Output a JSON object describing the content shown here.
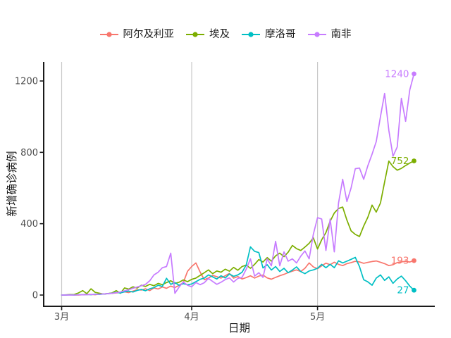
{
  "chart_data": {
    "type": "line",
    "title": "",
    "xlabel": "日期",
    "ylabel": "新增确诊病例",
    "grid": "vertical-major-only",
    "legend_position": "top-center",
    "background": "#ffffff",
    "gridline_color": "#c8c8c8",
    "axis_line_color": "#1a1a1a",
    "axis_text_color": "#4d4d4d",
    "ylim": [
      0,
      1300
    ],
    "y_ticks": [
      0,
      400,
      800,
      1200
    ],
    "x_ticks": [
      {
        "index": 0,
        "label": "3月"
      },
      {
        "index": 31,
        "label": "4月"
      },
      {
        "index": 61,
        "label": "5月"
      }
    ],
    "dates": [
      "03-01",
      "03-02",
      "03-03",
      "03-04",
      "03-05",
      "03-06",
      "03-07",
      "03-08",
      "03-09",
      "03-10",
      "03-11",
      "03-12",
      "03-13",
      "03-14",
      "03-15",
      "03-16",
      "03-17",
      "03-18",
      "03-19",
      "03-20",
      "03-21",
      "03-22",
      "03-23",
      "03-24",
      "03-25",
      "03-26",
      "03-27",
      "03-28",
      "03-29",
      "03-30",
      "03-31",
      "04-01",
      "04-02",
      "04-03",
      "04-04",
      "04-05",
      "04-06",
      "04-07",
      "04-08",
      "04-09",
      "04-10",
      "04-11",
      "04-12",
      "04-13",
      "04-14",
      "04-15",
      "04-16",
      "04-17",
      "04-18",
      "04-19",
      "04-20",
      "04-21",
      "04-22",
      "04-23",
      "04-24",
      "04-25",
      "04-26",
      "04-27",
      "04-28",
      "04-29",
      "04-30",
      "05-01",
      "05-02",
      "05-03",
      "05-04",
      "05-05",
      "05-06",
      "05-07",
      "05-08",
      "05-09",
      "05-10",
      "05-11",
      "05-12",
      "05-13",
      "05-14",
      "05-15",
      "05-16",
      "05-17",
      "05-18",
      "05-19",
      "05-20",
      "05-21",
      "05-22",
      "05-23",
      "05-24"
    ],
    "series": [
      {
        "id": "algeria",
        "name": "阿尔及利亚",
        "color": "#F8766D",
        "end_label": "193",
        "values": [
          0,
          0,
          3,
          1,
          0,
          2,
          4,
          3,
          2,
          5,
          6,
          8,
          10,
          12,
          15,
          18,
          14,
          22,
          30,
          28,
          35,
          25,
          40,
          34,
          45,
          38,
          50,
          42,
          55,
          70,
          133,
          160,
          180,
          130,
          86,
          95,
          110,
          103,
          95,
          108,
          121,
          95,
          104,
          90,
          98,
          108,
          95,
          106,
          112,
          96,
          89,
          99,
          108,
          116,
          126,
          134,
          141,
          132,
          150,
          180,
          158,
          148,
          164,
          179,
          170,
          184,
          172,
          165,
          176,
          182,
          189,
          186,
          178,
          183,
          188,
          191,
          184,
          176,
          165,
          170,
          182,
          186,
          189,
          185,
          193
        ]
      },
      {
        "id": "egypt",
        "name": "埃及",
        "color": "#7CAE00",
        "end_label": "752",
        "values": [
          0,
          1,
          2,
          3,
          12,
          25,
          8,
          35,
          15,
          10,
          5,
          8,
          12,
          25,
          10,
          40,
          33,
          46,
          39,
          55,
          48,
          60,
          52,
          65,
          58,
          70,
          80,
          65,
          72,
          85,
          75,
          88,
          95,
          110,
          125,
          141,
          120,
          135,
          128,
          145,
          134,
          155,
          139,
          160,
          168,
          150,
          172,
          199,
          185,
          210,
          190,
          220,
          235,
          215,
          240,
          278,
          260,
          250,
          269,
          290,
          321,
          258,
          310,
          350,
          414,
          460,
          485,
          493,
          420,
          360,
          340,
          328,
          387,
          436,
          504,
          465,
          516,
          634,
          751,
          720,
          700,
          710,
          726,
          740,
          752
        ]
      },
      {
        "id": "morocco",
        "name": "摩洛哥",
        "color": "#00BFC4",
        "end_label": "27",
        "values": [
          0,
          0,
          1,
          0,
          2,
          1,
          3,
          2,
          5,
          3,
          6,
          8,
          10,
          15,
          12,
          18,
          22,
          17,
          26,
          31,
          24,
          35,
          42,
          55,
          48,
          94,
          60,
          70,
          55,
          64,
          58,
          62,
          75,
          88,
          95,
          113,
          102,
          90,
          108,
          96,
          118,
          105,
          113,
          128,
          168,
          270,
          245,
          238,
          152,
          170,
          140,
          160,
          132,
          150,
          125,
          140,
          158,
          132,
          120,
          135,
          141,
          150,
          172,
          153,
          172,
          153,
          192,
          180,
          190,
          200,
          211,
          160,
          86,
          74,
          55,
          95,
          113,
          82,
          102,
          66,
          90,
          106,
          80,
          50,
          27
        ]
      },
      {
        "id": "south-africa",
        "name": "南非",
        "color": "#C77CFF",
        "end_label": "1240",
        "values": [
          0,
          0,
          0,
          0,
          1,
          1,
          2,
          3,
          3,
          5,
          6,
          8,
          10,
          13,
          17,
          24,
          30,
          38,
          45,
          52,
          60,
          80,
          113,
          128,
          153,
          160,
          235,
          10,
          45,
          74,
          55,
          46,
          70,
          58,
          69,
          93,
          76,
          60,
          72,
          87,
          96,
          73,
          93,
          99,
          145,
          203,
          106,
          125,
          99,
          203,
          164,
          301,
          164,
          242,
          190,
          203,
          180,
          218,
          247,
          203,
          340,
          434,
          426,
          250,
          426,
          242,
          516,
          649,
          524,
          600,
          708,
          712,
          649,
          725,
          790,
          860,
          1000,
          1130,
          923,
          778,
          830,
          1103,
          974,
          1150,
          1240
        ]
      }
    ]
  }
}
